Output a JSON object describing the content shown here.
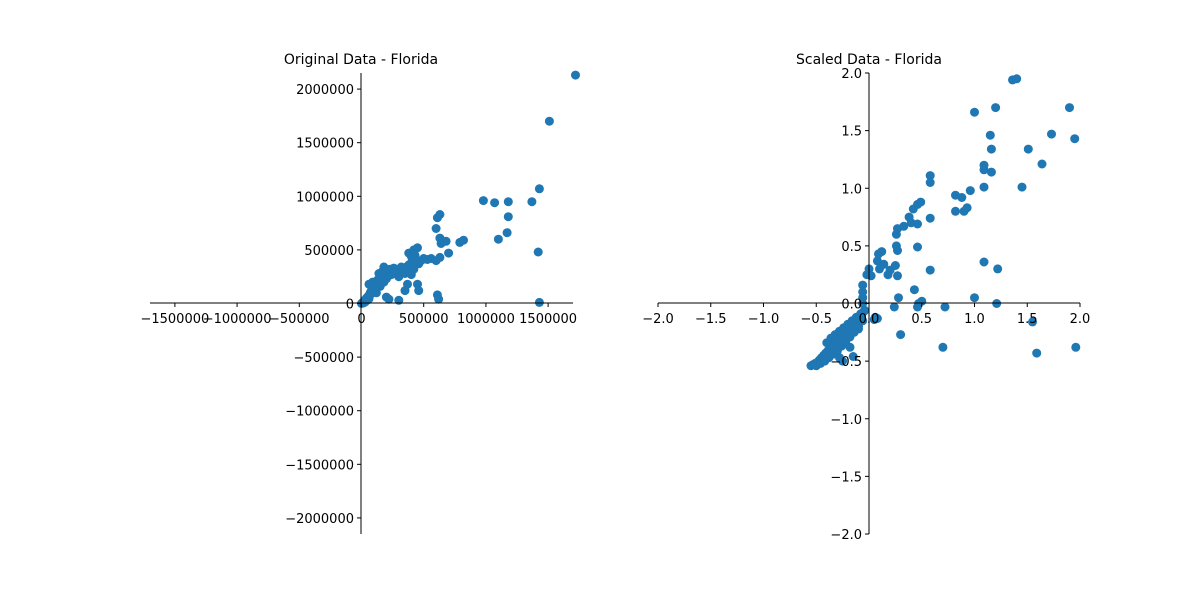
{
  "colors": {
    "marker": "#1f77b4",
    "axis": "#000000",
    "background": "#ffffff"
  },
  "chart_data": [
    {
      "type": "scatter",
      "title": "Original Data - Florida",
      "xlabel": "",
      "ylabel": "",
      "xlim": [
        -1700000,
        1700000
      ],
      "ylim": [
        -2150000,
        2150000
      ],
      "grid": false,
      "spines": "centered",
      "x_ticks": [
        -1500000,
        -1000000,
        -500000,
        0,
        500000,
        1000000,
        1500000
      ],
      "x_tick_labels": [
        "−1500000",
        "−1000000",
        "−500000",
        "0",
        "500000",
        "1000000",
        "1500000"
      ],
      "y_ticks": [
        -2000000,
        -1500000,
        -1000000,
        -500000,
        0,
        500000,
        1000000,
        1500000,
        2000000
      ],
      "y_tick_labels": [
        "−2000000",
        "−1500000",
        "−1000000",
        "−500000",
        "0",
        "500000",
        "1000000",
        "1500000",
        "2000000"
      ],
      "series": [
        {
          "points": [
            [
              0,
              0
            ],
            [
              10000,
              10000
            ],
            [
              15000,
              5000
            ],
            [
              20000,
              20000
            ],
            [
              25000,
              30000
            ],
            [
              30000,
              15000
            ],
            [
              35000,
              40000
            ],
            [
              40000,
              50000
            ],
            [
              45000,
              30000
            ],
            [
              50000,
              60000
            ],
            [
              55000,
              70000
            ],
            [
              60000,
              45000
            ],
            [
              65000,
              80000
            ],
            [
              70000,
              100000
            ],
            [
              75000,
              90000
            ],
            [
              80000,
              120000
            ],
            [
              85000,
              110000
            ],
            [
              90000,
              140000
            ],
            [
              95000,
              130000
            ],
            [
              100000,
              160000
            ],
            [
              105000,
              150000
            ],
            [
              110000,
              180000
            ],
            [
              115000,
              170000
            ],
            [
              120000,
              200000
            ],
            [
              125000,
              190000
            ],
            [
              130000,
              220000
            ],
            [
              140000,
              210000
            ],
            [
              150000,
              240000
            ],
            [
              160000,
              230000
            ],
            [
              170000,
              260000
            ],
            [
              180000,
              250000
            ],
            [
              190000,
              280000
            ],
            [
              200000,
              270000
            ],
            [
              120000,
              100000
            ],
            [
              150000,
              160000
            ],
            [
              180000,
              200000
            ],
            [
              200000,
              230000
            ],
            [
              220000,
              260000
            ],
            [
              250000,
              280000
            ],
            [
              280000,
              300000
            ],
            [
              300000,
              290000
            ],
            [
              320000,
              310000
            ],
            [
              340000,
              330000
            ],
            [
              360000,
              340000
            ],
            [
              380000,
              360000
            ],
            [
              400000,
              380000
            ],
            [
              420000,
              390000
            ],
            [
              440000,
              410000
            ],
            [
              460000,
              370000
            ],
            [
              480000,
              400000
            ],
            [
              500000,
              420000
            ],
            [
              380000,
              470000
            ],
            [
              420000,
              500000
            ],
            [
              450000,
              520000
            ],
            [
              180000,
              340000
            ],
            [
              230000,
              320000
            ],
            [
              260000,
              300000
            ],
            [
              300000,
              250000
            ],
            [
              350000,
              280000
            ],
            [
              400000,
              270000
            ],
            [
              420000,
              320000
            ],
            [
              380000,
              300000
            ],
            [
              200000,
              60000
            ],
            [
              220000,
              40000
            ],
            [
              300000,
              30000
            ],
            [
              350000,
              120000
            ],
            [
              370000,
              180000
            ],
            [
              450000,
              180000
            ],
            [
              460000,
              120000
            ],
            [
              530000,
              410000
            ],
            [
              560000,
              420000
            ],
            [
              600000,
              400000
            ],
            [
              610000,
              80000
            ],
            [
              620000,
              40000
            ],
            [
              600000,
              700000
            ],
            [
              610000,
              800000
            ],
            [
              630000,
              830000
            ],
            [
              630000,
              610000
            ],
            [
              640000,
              560000
            ],
            [
              680000,
              580000
            ],
            [
              700000,
              470000
            ],
            [
              630000,
              430000
            ],
            [
              790000,
              570000
            ],
            [
              820000,
              590000
            ],
            [
              980000,
              960000
            ],
            [
              1070000,
              940000
            ],
            [
              1180000,
              950000
            ],
            [
              1180000,
              810000
            ],
            [
              1170000,
              660000
            ],
            [
              1100000,
              600000
            ],
            [
              1370000,
              950000
            ],
            [
              1430000,
              1070000
            ],
            [
              1420000,
              480000
            ],
            [
              1430000,
              10000
            ],
            [
              1510000,
              1700000
            ],
            [
              1720000,
              2130000
            ],
            [
              60000,
              180000
            ],
            [
              90000,
              200000
            ],
            [
              140000,
              280000
            ],
            [
              170000,
              300000
            ],
            [
              220000,
              310000
            ],
            [
              240000,
              270000
            ],
            [
              260000,
              330000
            ],
            [
              280000,
              290000
            ],
            [
              320000,
              340000
            ],
            [
              340000,
              300000
            ],
            [
              400000,
              440000
            ],
            [
              430000,
              450000
            ]
          ]
        }
      ]
    },
    {
      "type": "scatter",
      "title": "Scaled Data - Florida",
      "xlabel": "",
      "ylabel": "",
      "xlim": [
        -2.0,
        2.0
      ],
      "ylim": [
        -2.0,
        2.0
      ],
      "grid": false,
      "spines": "centered",
      "x_ticks": [
        -2.0,
        -1.5,
        -1.0,
        -0.5,
        0.0,
        0.5,
        1.0,
        1.5,
        2.0
      ],
      "x_tick_labels": [
        "−2.0",
        "−1.5",
        "−1.0",
        "−0.5",
        "0.0",
        "0.5",
        "1.0",
        "1.5",
        "2.0"
      ],
      "y_ticks": [
        -2.0,
        -1.5,
        -1.0,
        -0.5,
        0.0,
        0.5,
        1.0,
        1.5,
        2.0
      ],
      "y_tick_labels": [
        "−2.0",
        "−1.5",
        "−1.0",
        "−0.5",
        "0.0",
        "0.5",
        "1.0",
        "1.5",
        "2.0"
      ],
      "series": [
        {
          "points": [
            [
              -0.55,
              -0.54
            ],
            [
              -0.53,
              -0.53
            ],
            [
              -0.51,
              -0.52
            ],
            [
              -0.49,
              -0.51
            ],
            [
              -0.47,
              -0.49
            ],
            [
              -0.45,
              -0.47
            ],
            [
              -0.43,
              -0.45
            ],
            [
              -0.41,
              -0.43
            ],
            [
              -0.39,
              -0.41
            ],
            [
              -0.37,
              -0.39
            ],
            [
              -0.35,
              -0.37
            ],
            [
              -0.33,
              -0.35
            ],
            [
              -0.31,
              -0.33
            ],
            [
              -0.29,
              -0.31
            ],
            [
              -0.27,
              -0.29
            ],
            [
              -0.25,
              -0.27
            ],
            [
              -0.23,
              -0.25
            ],
            [
              -0.21,
              -0.23
            ],
            [
              -0.19,
              -0.21
            ],
            [
              -0.17,
              -0.19
            ],
            [
              -0.15,
              -0.17
            ],
            [
              -0.13,
              -0.15
            ],
            [
              -0.11,
              -0.13
            ],
            [
              -0.09,
              -0.11
            ],
            [
              -0.07,
              -0.09
            ],
            [
              -0.05,
              -0.07
            ],
            [
              -0.5,
              -0.54
            ],
            [
              -0.46,
              -0.52
            ],
            [
              -0.42,
              -0.5
            ],
            [
              -0.38,
              -0.47
            ],
            [
              -0.34,
              -0.44
            ],
            [
              -0.3,
              -0.41
            ],
            [
              -0.26,
              -0.37
            ],
            [
              -0.22,
              -0.33
            ],
            [
              -0.18,
              -0.29
            ],
            [
              -0.14,
              -0.25
            ],
            [
              -0.1,
              -0.2
            ],
            [
              -0.06,
              -0.15
            ],
            [
              -0.4,
              -0.34
            ],
            [
              -0.36,
              -0.3
            ],
            [
              -0.32,
              -0.27
            ],
            [
              -0.28,
              -0.24
            ],
            [
              -0.24,
              -0.21
            ],
            [
              -0.2,
              -0.18
            ],
            [
              -0.16,
              -0.15
            ],
            [
              -0.12,
              -0.12
            ],
            [
              -0.08,
              -0.09
            ],
            [
              -0.04,
              -0.06
            ],
            [
              -0.25,
              -0.5
            ],
            [
              -0.28,
              -0.47
            ],
            [
              -0.15,
              -0.46
            ],
            [
              -0.18,
              -0.38
            ],
            [
              -0.1,
              -0.22
            ],
            [
              -0.06,
              0.0
            ],
            [
              -0.06,
              0.05
            ],
            [
              -0.06,
              0.1
            ],
            [
              -0.06,
              0.16
            ],
            [
              0.05,
              -0.14
            ],
            [
              0.06,
              -0.12
            ],
            [
              0.08,
              -0.13
            ],
            [
              -0.02,
              0.25
            ],
            [
              0.0,
              0.3
            ],
            [
              0.02,
              0.24
            ],
            [
              0.08,
              0.37
            ],
            [
              0.09,
              0.43
            ],
            [
              0.12,
              0.45
            ],
            [
              0.1,
              0.3
            ],
            [
              0.14,
              0.34
            ],
            [
              0.18,
              0.25
            ],
            [
              0.2,
              0.29
            ],
            [
              0.25,
              0.33
            ],
            [
              0.27,
              0.24
            ],
            [
              0.27,
              0.46
            ],
            [
              0.26,
              0.5
            ],
            [
              0.26,
              0.6
            ],
            [
              0.27,
              0.65
            ],
            [
              0.33,
              0.67
            ],
            [
              0.38,
              0.75
            ],
            [
              0.4,
              0.7
            ],
            [
              0.42,
              0.82
            ],
            [
              0.46,
              0.86
            ],
            [
              0.49,
              0.88
            ],
            [
              0.46,
              0.69
            ],
            [
              0.46,
              0.49
            ],
            [
              0.58,
              0.74
            ],
            [
              0.58,
              1.05
            ],
            [
              0.58,
              1.11
            ],
            [
              0.58,
              0.29
            ],
            [
              0.3,
              -0.27
            ],
            [
              0.24,
              -0.03
            ],
            [
              0.28,
              0.05
            ],
            [
              0.43,
              0.12
            ],
            [
              0.47,
              0.0
            ],
            [
              0.46,
              -0.03
            ],
            [
              0.5,
              0.02
            ],
            [
              0.7,
              -0.38
            ],
            [
              0.72,
              -0.03
            ],
            [
              0.82,
              0.94
            ],
            [
              0.82,
              0.8
            ],
            [
              0.88,
              0.92
            ],
            [
              0.9,
              0.8
            ],
            [
              0.93,
              0.83
            ],
            [
              0.96,
              0.98
            ],
            [
              1.0,
              1.66
            ],
            [
              1.0,
              0.05
            ],
            [
              1.09,
              1.16
            ],
            [
              1.09,
              1.2
            ],
            [
              1.09,
              1.01
            ],
            [
              1.09,
              0.36
            ],
            [
              1.15,
              1.46
            ],
            [
              1.16,
              1.34
            ],
            [
              1.16,
              1.14
            ],
            [
              1.2,
              1.7
            ],
            [
              1.22,
              0.3
            ],
            [
              1.21,
              0.0
            ],
            [
              1.45,
              1.01
            ],
            [
              1.51,
              1.34
            ],
            [
              1.55,
              -0.16
            ],
            [
              1.59,
              -0.43
            ],
            [
              1.64,
              1.21
            ],
            [
              1.73,
              1.47
            ],
            [
              1.9,
              1.7
            ],
            [
              1.95,
              1.43
            ],
            [
              1.96,
              -0.38
            ],
            [
              1.36,
              1.94
            ],
            [
              1.4,
              1.95
            ]
          ]
        }
      ]
    }
  ]
}
